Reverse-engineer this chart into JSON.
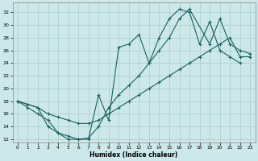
{
  "xlabel": "Humidex (Indice chaleur)",
  "bg_color": "#cce8e8",
  "grid_color": "#aacece",
  "line_color": "#1a6060",
  "xlim": [
    -0.5,
    23.5
  ],
  "ylim": [
    11.5,
    33.5
  ],
  "xticks": [
    0,
    1,
    2,
    3,
    4,
    5,
    6,
    7,
    8,
    9,
    10,
    11,
    12,
    13,
    14,
    15,
    16,
    17,
    18,
    19,
    20,
    21,
    22,
    23
  ],
  "yticks": [
    12,
    14,
    16,
    18,
    20,
    22,
    24,
    26,
    28,
    30,
    32
  ],
  "line1_x": [
    0,
    1,
    2,
    3,
    4,
    5,
    6,
    7,
    8,
    9,
    10,
    11,
    12,
    13,
    14,
    15,
    16,
    17,
    18,
    19,
    20,
    21,
    22
  ],
  "line1_y": [
    18,
    17,
    16,
    15,
    13,
    12,
    12,
    12,
    19,
    15,
    26.5,
    27,
    28.5,
    24,
    28,
    31,
    32.5,
    32,
    27,
    30.5,
    26,
    25,
    24
  ],
  "line2_x": [
    0,
    1,
    2,
    3,
    4,
    5,
    6,
    7,
    8,
    9,
    10,
    11,
    12,
    13,
    14,
    15,
    16,
    17,
    18,
    19,
    20,
    21,
    22,
    23
  ],
  "line2_y": [
    18,
    17.5,
    17,
    16,
    15.5,
    15,
    14.5,
    14.5,
    15,
    16,
    17,
    18,
    19,
    20,
    21,
    22,
    23,
    24,
    25,
    26,
    27,
    28,
    25,
    25
  ],
  "line3_x": [
    0,
    2,
    3,
    4,
    5,
    6,
    7,
    8,
    9,
    10,
    11,
    12,
    13,
    14,
    15,
    16,
    17,
    19,
    20,
    21,
    22,
    23
  ],
  "line3_y": [
    18,
    17,
    14,
    13,
    12.5,
    12,
    12.2,
    14,
    17,
    19,
    20.5,
    22,
    24,
    26,
    28,
    31,
    32.5,
    27,
    31,
    27,
    26,
    25.5
  ]
}
